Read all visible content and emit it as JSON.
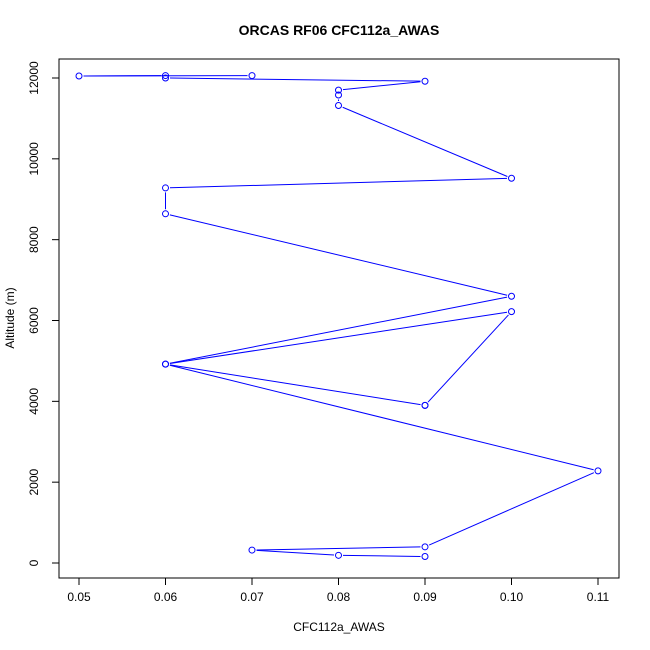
{
  "chart_data": {
    "type": "line",
    "title": "ORCAS RF06 CFC112a_AWAS",
    "xlabel": "CFC112a_AWAS",
    "ylabel": "Altitude (m)",
    "xlim": [
      0.05,
      0.11
    ],
    "ylim": [
      0,
      12000
    ],
    "x_ticks": [
      0.05,
      0.06,
      0.07,
      0.08,
      0.09,
      0.1,
      0.11
    ],
    "x_tick_labels": [
      "0.05",
      "0.06",
      "0.07",
      "0.08",
      "0.09",
      "0.10",
      "0.11"
    ],
    "y_ticks": [
      0,
      2000,
      4000,
      6000,
      8000,
      10000,
      12000
    ],
    "y_tick_labels": [
      "0",
      "2000",
      "4000",
      "6000",
      "8000",
      "10000",
      "12000"
    ],
    "grid": false,
    "legend": "none",
    "series_color": "#0000ff",
    "series": [
      {
        "x": [
          0.09,
          0.08,
          0.07,
          0.09,
          0.11,
          0.06,
          0.09,
          0.09,
          0.1,
          0.06,
          0.1,
          0.06,
          0.06,
          0.1,
          0.08,
          0.08,
          0.08,
          0.09,
          0.06,
          0.06,
          0.05,
          0.07
        ],
        "y": [
          160,
          190,
          320,
          400,
          2280,
          4920,
          3900,
          3900,
          6220,
          4920,
          6600,
          8640,
          9280,
          9520,
          11320,
          11580,
          11700,
          11920,
          12000,
          12060,
          12050,
          12060
        ]
      }
    ]
  }
}
